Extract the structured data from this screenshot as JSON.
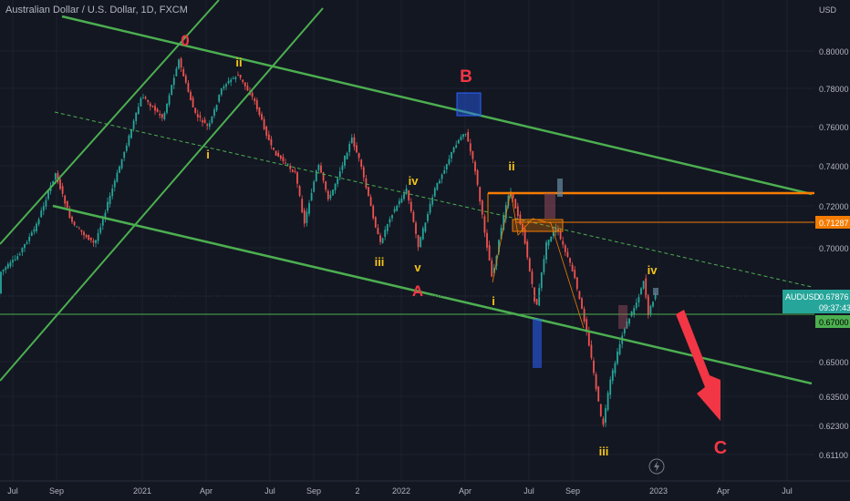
{
  "header": {
    "title": "Australian Dollar / U.S. Dollar, 1D, FXCM"
  },
  "chart_data": {
    "type": "candlestick",
    "title": "Australian Dollar / U.S. Dollar, 1D, FXCM",
    "y_axis": {
      "unit_label": "USD",
      "ticks": [
        "0.80000",
        "0.78000",
        "0.76000",
        "0.74000",
        "0.72000",
        "0.70000",
        "0.65000",
        "0.63500",
        "0.62300",
        "0.61100"
      ]
    },
    "x_axis": {
      "ticks": [
        "Jul",
        "Sep",
        "2021",
        "Apr",
        "Jul",
        "Sep",
        "2",
        "2022",
        "Apr",
        "Jul",
        "Sep",
        "2023",
        "Apr",
        "Jul"
      ]
    },
    "price_labels": {
      "symbol": "AUDUSD",
      "current": "0.67876",
      "countdown": "09:37:43",
      "level_orange": "0.71287",
      "level_green": "0.67000"
    },
    "wave_labels": [
      "0",
      "ii",
      "i",
      "iii",
      "iv",
      "v",
      "A",
      "B",
      "ii",
      "i",
      "iv",
      "iii",
      "C"
    ],
    "colors": {
      "background": "#131722",
      "up": "#26a69a",
      "down": "#ef5350",
      "channel": "#4caf50",
      "orange": "#f57c00",
      "wave_yellow": "#f5c518",
      "wave_red": "#f23645",
      "blue_box": "#2962ff"
    }
  }
}
